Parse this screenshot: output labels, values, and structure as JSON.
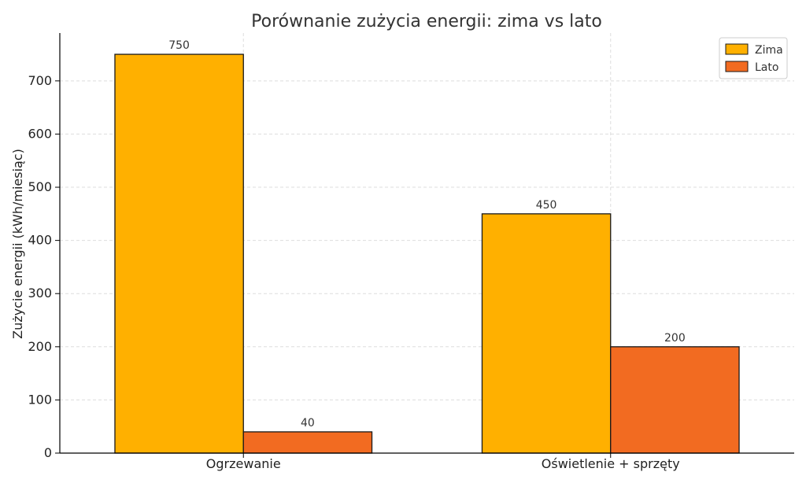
{
  "chart_data": {
    "type": "bar",
    "title": "Porównanie zużycia energii: zima vs lato",
    "xlabel": "",
    "ylabel": "Zużycie energii (kWh/miesiąc)",
    "categories": [
      "Ogrzewanie",
      "Oświetlenie + sprzęty"
    ],
    "series": [
      {
        "name": "Zima",
        "values": [
          750,
          450
        ],
        "color": "#FFB000"
      },
      {
        "name": "Lato",
        "values": [
          40,
          200
        ],
        "color": "#F26B21"
      }
    ],
    "ylim": [
      0,
      790
    ],
    "yticks": [
      0,
      100,
      200,
      300,
      400,
      500,
      600,
      700
    ],
    "grid": true,
    "legend_position": "top-right",
    "data_labels": true
  }
}
